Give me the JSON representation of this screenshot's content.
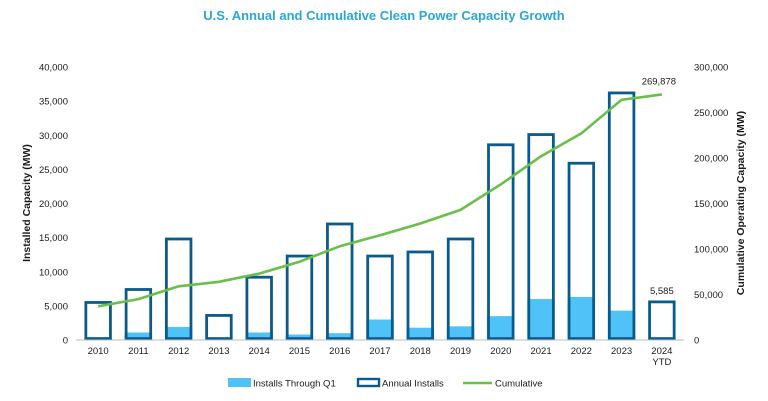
{
  "chart_data": {
    "type": "bar",
    "title": "U.S. Annual and Cumulative Clean Power Capacity Growth",
    "categories": [
      "2010",
      "2011",
      "2012",
      "2013",
      "2014",
      "2015",
      "2016",
      "2017",
      "2018",
      "2019",
      "2020",
      "2021",
      "2022",
      "2023",
      "2024 YTD"
    ],
    "ylabel": "Installed Capacity (MW)",
    "y2label": "Cumulative Operating Capacity (MW)",
    "ylim": [
      0,
      40000
    ],
    "y2lim": [
      0,
      300000
    ],
    "y_ticks": [
      "0",
      "5,000",
      "10,000",
      "15,000",
      "20,000",
      "25,000",
      "30,000",
      "35,000",
      "40,000"
    ],
    "y2_ticks": [
      "0",
      "50,000",
      "100,000",
      "150,000",
      "200,000",
      "250,000",
      "300,000"
    ],
    "grid": false,
    "legend_position": "bottom",
    "series": [
      {
        "name": "Installs Through Q1",
        "type": "bar",
        "color": "#4fc3f7",
        "values": [
          400,
          1100,
          1900,
          100,
          1100,
          800,
          1000,
          3000,
          1800,
          2000,
          3500,
          6000,
          6300,
          4300,
          null
        ]
      },
      {
        "name": "Annual Installs",
        "type": "bar-outline",
        "color": "#0a5a8c",
        "values": [
          5500,
          7400,
          14800,
          3600,
          9200,
          12300,
          17000,
          12300,
          12900,
          14800,
          28600,
          30100,
          25900,
          36200,
          5585
        ]
      },
      {
        "name": "Cumulative",
        "type": "line",
        "axis": "secondary",
        "color": "#6abf4b",
        "values": [
          37000,
          45000,
          59000,
          64000,
          73000,
          86000,
          103000,
          115000,
          128000,
          143000,
          171000,
          202000,
          227000,
          264000,
          269878
        ]
      }
    ],
    "annotations": [
      {
        "series": "Cumulative",
        "category": "2024 YTD",
        "text": "269,878"
      },
      {
        "series": "Annual Installs",
        "category": "2024 YTD",
        "text": "5,585"
      }
    ]
  }
}
